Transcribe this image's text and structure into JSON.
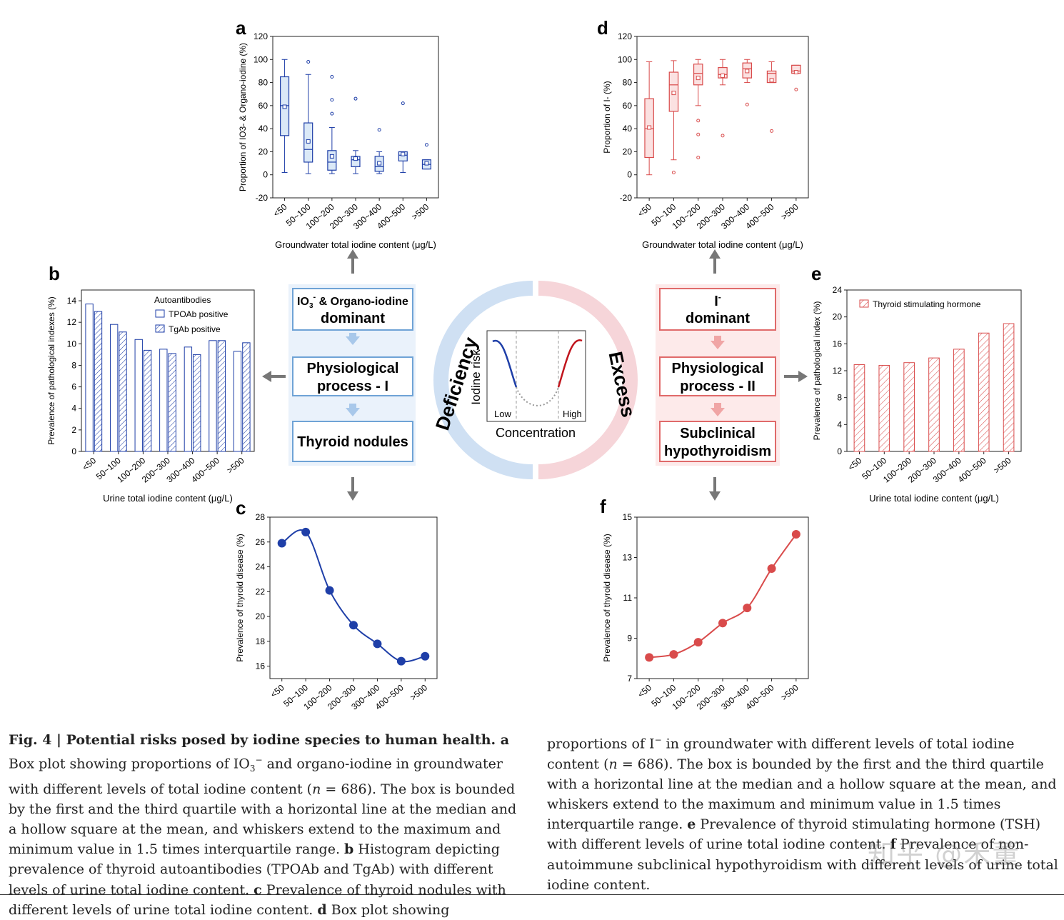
{
  "panel_letters": {
    "a": "a",
    "b": "b",
    "c": "c",
    "d": "d",
    "e": "e",
    "f": "f"
  },
  "colors": {
    "blue": "#1f3fa8",
    "blue_fill": "#dbe9f7",
    "red": "#d94b4b",
    "red_fill": "#fbe1e1",
    "arrow": "#777777",
    "ring_blue": "#cfe0f3",
    "ring_red": "#f6d5d9"
  },
  "center": {
    "left_flow": [
      "IO3- & Organo-iodine dominant",
      "Physiological process - I",
      "Thyroid nodules"
    ],
    "left_box1_line1": "IO",
    "left_box1_sub": "3",
    "left_box1_sup": "-",
    "left_box1_rest": " & Organo-iodine",
    "left_box1_line2": "dominant",
    "left_box2_line1": "Physiological",
    "left_box2_line2": "process - I",
    "left_box3": "Thyroid nodules",
    "right_box1_line1": "I",
    "right_box1_sup": "-",
    "right_box1_line2": "dominant",
    "right_box2_line1": "Physiological",
    "right_box2_line2": "process - II",
    "right_box3_line1": "Subclinical",
    "right_box3_line2": "hypothyroidism",
    "ring_left": "Deficiency",
    "ring_right": "Excess",
    "mini_ylabel": "Iodine risk",
    "mini_low": "Low",
    "mini_high": "High",
    "mini_xlabel": "Concentration"
  },
  "chart_data": [
    {
      "panel": "a",
      "type": "box",
      "categories": [
        "<50",
        "50~100",
        "100~200",
        "200~300",
        "300~400",
        "400~500",
        ">500"
      ],
      "xlabel": "Groundwater total iodine content (μg/L)",
      "ylabel": "Proportion of IO3- & Organo-iodine (%)",
      "ylim": [
        -20,
        120
      ],
      "yticks": [
        -20,
        0,
        20,
        40,
        60,
        80,
        100,
        120
      ],
      "boxes": [
        {
          "min": 2,
          "q1": 34,
          "median": 60,
          "q3": 85,
          "max": 100,
          "mean": 59,
          "outliers": []
        },
        {
          "min": 1,
          "q1": 11,
          "median": 22,
          "q3": 45,
          "max": 87,
          "mean": 29,
          "outliers": [
            98
          ]
        },
        {
          "min": 1,
          "q1": 4,
          "median": 11,
          "q3": 21,
          "max": 41,
          "mean": 16,
          "outliers": [
            85,
            65,
            53
          ]
        },
        {
          "min": 1,
          "q1": 7,
          "median": 13,
          "q3": 16,
          "max": 21,
          "mean": 14,
          "outliers": [
            66
          ]
        },
        {
          "min": 1,
          "q1": 3,
          "median": 7,
          "q3": 16,
          "max": 20,
          "mean": 10,
          "outliers": [
            39
          ]
        },
        {
          "min": 2,
          "q1": 12,
          "median": 17,
          "q3": 20,
          "max": 20,
          "mean": 18,
          "outliers": [
            62
          ]
        },
        {
          "min": 5,
          "q1": 5,
          "median": 9,
          "q3": 13,
          "max": 13,
          "mean": 10,
          "outliers": [
            26
          ]
        }
      ]
    },
    {
      "panel": "b",
      "type": "bar",
      "categories": [
        "<50",
        "50~100",
        "100~200",
        "200~300",
        "300~400",
        "400~500",
        ">500"
      ],
      "xlabel": "Urine total iodine content (μg/L)",
      "ylabel": "Prevalence of pathological indexes (%)",
      "ylim": [
        0,
        15
      ],
      "yticks": [
        0,
        2,
        4,
        6,
        8,
        10,
        12,
        14
      ],
      "legend_title": "Autoantibodies",
      "series": [
        {
          "name": "TPOAb positive",
          "values": [
            13.7,
            11.8,
            10.4,
            9.5,
            9.7,
            10.3,
            9.3
          ]
        },
        {
          "name": "TgAb positive",
          "values": [
            13.0,
            11.1,
            9.4,
            9.1,
            9.0,
            10.3,
            10.1
          ]
        }
      ]
    },
    {
      "panel": "c",
      "type": "line",
      "categories": [
        "<50",
        "50~100",
        "100~200",
        "200~300",
        "300~400",
        "400~500",
        ">500"
      ],
      "xlabel": "Urine total iodine content (μg/L)",
      "ylabel": "Prevalence of thyroid disease (%)",
      "ylim": [
        15,
        28
      ],
      "yticks": [
        16,
        18,
        20,
        22,
        24,
        26,
        28
      ],
      "values": [
        25.9,
        26.8,
        22.1,
        19.3,
        17.8,
        16.4,
        16.8
      ]
    },
    {
      "panel": "d",
      "type": "box",
      "categories": [
        "<50",
        "50~100",
        "100~200",
        "200~300",
        "300~400",
        "400~500",
        ">500"
      ],
      "xlabel": "Groundwater total iodine content (μg/L)",
      "ylabel": "Proportion of I- (%)",
      "ylim": [
        -20,
        120
      ],
      "yticks": [
        -20,
        0,
        20,
        40,
        60,
        80,
        100,
        120
      ],
      "boxes": [
        {
          "min": 0,
          "q1": 15,
          "median": 40,
          "q3": 66,
          "max": 98,
          "mean": 41,
          "outliers": []
        },
        {
          "min": 13,
          "q1": 55,
          "median": 78,
          "q3": 89,
          "max": 99,
          "mean": 71,
          "outliers": [
            2
          ]
        },
        {
          "min": 60,
          "q1": 78,
          "median": 88,
          "q3": 96,
          "max": 100,
          "mean": 84,
          "outliers": [
            47,
            35,
            15
          ]
        },
        {
          "min": 78,
          "q1": 84,
          "median": 87,
          "q3": 93,
          "max": 100,
          "mean": 86,
          "outliers": [
            34
          ]
        },
        {
          "min": 80,
          "q1": 84,
          "median": 92,
          "q3": 97,
          "max": 100,
          "mean": 90,
          "outliers": [
            61
          ]
        },
        {
          "min": 80,
          "q1": 80,
          "median": 88,
          "q3": 90,
          "max": 98,
          "mean": 82,
          "outliers": [
            38
          ]
        },
        {
          "min": 88,
          "q1": 88,
          "median": 90,
          "q3": 95,
          "max": 95,
          "mean": 89,
          "outliers": [
            74
          ]
        }
      ]
    },
    {
      "panel": "e",
      "type": "bar",
      "categories": [
        "<50",
        "50~100",
        "100~200",
        "200~300",
        "300~400",
        "400~500",
        ">500"
      ],
      "xlabel": "Urine total iodine content (μg/L)",
      "ylabel": "Prevalence of pathological index (%)",
      "ylim": [
        0,
        24
      ],
      "yticks": [
        0,
        4,
        8,
        12,
        16,
        20,
        24
      ],
      "series": [
        {
          "name": "Thyroid stimulating hormone",
          "values": [
            12.9,
            12.8,
            13.2,
            13.9,
            15.2,
            17.6,
            19.0
          ]
        }
      ]
    },
    {
      "panel": "f",
      "type": "line",
      "categories": [
        "<50",
        "50~100",
        "100~200",
        "200~300",
        "300~400",
        "400~500",
        ">500"
      ],
      "xlabel": "Urine total iodine content (μg/L)",
      "ylabel": "Prevalence of thyroid disease (%)",
      "ylim": [
        7,
        15
      ],
      "yticks": [
        7,
        9,
        11,
        13,
        15
      ],
      "values": [
        8.05,
        8.2,
        8.8,
        9.75,
        10.5,
        12.45,
        14.15
      ]
    }
  ],
  "caption": {
    "left": [
      {
        "b": "Fig. 4 | Potential risks posed by iodine species to human health. a"
      },
      {
        "t": " Box plot showing proportions of IO"
      },
      {
        "sub": "3"
      },
      {
        "sup": "−"
      },
      {
        "t": " and organo-iodine in groundwater with different levels of total iodine content ("
      },
      {
        "i": "n"
      },
      {
        "t": " = 686). The box is bounded by the first and the third quartile with a horizontal line at the median and a hollow square at the mean, and whiskers extend to the maximum and minimum value in 1.5 times interquartile range. "
      },
      {
        "b": "b"
      },
      {
        "t": " Histogram depicting prevalence of thyroid autoantibodies (TPOAb and TgAb) with different levels of urine total iodine content. "
      },
      {
        "b": "c"
      },
      {
        "t": " Prevalence of thyroid nodules with different levels of urine total iodine content. "
      },
      {
        "b": "d"
      },
      {
        "t": " Box plot showing"
      }
    ],
    "right": [
      {
        "t": "proportions of I"
      },
      {
        "sup": "−"
      },
      {
        "t": " in groundwater with different levels of total iodine content ("
      },
      {
        "i": "n"
      },
      {
        "t": " = 686). The box is bounded by the first and the third quartile with a horizontal line at the median and a hollow square at the mean, and whiskers extend to the maximum and minimum value in 1.5 times interquartile range. "
      },
      {
        "b": "e"
      },
      {
        "t": " Prevalence of thyroid stimulating hormone (TSH) with different levels of urine total iodine content. "
      },
      {
        "b": "f"
      },
      {
        "t": " Prevalence of non-autoimmune subclinical hypothyroidism with different levels of urine total iodine content."
      }
    ]
  },
  "watermark": "知乎 @禾董"
}
